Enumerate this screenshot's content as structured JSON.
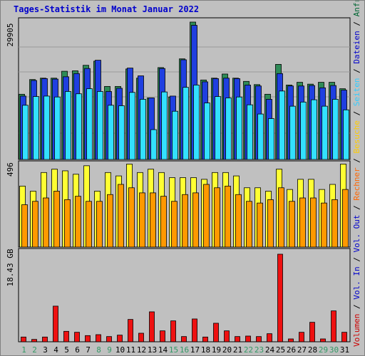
{
  "title": "Tages-Statistik im Monat Januar 2022",
  "legend": [
    {
      "key": "volumen",
      "label": "Volumen",
      "color": "#CC0000"
    },
    {
      "key": "vol_in",
      "label": "Vol. In",
      "color": "#0000CC"
    },
    {
      "key": "vol_out",
      "label": "Vol. Out",
      "color": "#0000CC"
    },
    {
      "key": "rechner",
      "label": "Rechner",
      "color": "#FF6600"
    },
    {
      "key": "besuche",
      "label": "Besuche",
      "color": "#FFCC00"
    },
    {
      "key": "seiten",
      "label": "Seiten",
      "color": "#33CCFF"
    },
    {
      "key": "dateien",
      "label": "Dateien",
      "color": "#0000CC"
    },
    {
      "key": "anfragen",
      "label": "Anfragen",
      "color": "#006633"
    }
  ],
  "legend_separator": " / ",
  "colors": {
    "anfragen": "#2E8B57",
    "dateien": "#1F3FE0",
    "seiten": "#33E0FF",
    "besuche": "#FFFF33",
    "rechner": "#FF9900",
    "volumen": "#EE1111",
    "weekend_label": "#339966",
    "weekday_label": "#000000"
  },
  "chart_data": [
    {
      "type": "bar",
      "panel": "hits",
      "ymax_label": "29905",
      "ymax": 29905,
      "categories": [
        "1",
        "2",
        "3",
        "4",
        "5",
        "6",
        "7",
        "8",
        "9",
        "10",
        "11",
        "12",
        "13",
        "14",
        "15",
        "16",
        "17",
        "18",
        "19",
        "20",
        "21",
        "22",
        "23",
        "24",
        "25",
        "26",
        "27",
        "28",
        "29",
        "30",
        "31"
      ],
      "weekend": [
        1,
        2,
        8,
        9,
        15,
        16,
        22,
        23,
        29,
        30
      ],
      "series": [
        {
          "name": "Anfragen",
          "values": [
            14200,
            17400,
            17700,
            17700,
            19200,
            19300,
            20500,
            21400,
            15900,
            15900,
            19700,
            17700,
            13400,
            20000,
            13600,
            21900,
            29905,
            17300,
            17700,
            18600,
            17700,
            17000,
            16300,
            14200,
            20700,
            16200,
            16800,
            16400,
            16800,
            16800,
            15400
          ]
        },
        {
          "name": "Dateien",
          "values": [
            13800,
            17200,
            17600,
            17500,
            18000,
            18700,
            19800,
            21600,
            14800,
            15500,
            19900,
            18200,
            13400,
            19800,
            13800,
            21700,
            29200,
            16900,
            17600,
            17700,
            17600,
            16200,
            16000,
            13100,
            18700,
            16000,
            16000,
            16100,
            15600,
            16100,
            15100
          ]
        },
        {
          "name": "Seiten",
          "values": [
            11800,
            13700,
            13800,
            13600,
            14800,
            14300,
            15400,
            14800,
            11800,
            11700,
            14600,
            13100,
            6500,
            14700,
            10500,
            15700,
            16200,
            12300,
            13700,
            13400,
            13600,
            11900,
            9900,
            8900,
            14900,
            11600,
            12500,
            13000,
            11600,
            13100,
            10800
          ]
        }
      ]
    },
    {
      "type": "bar",
      "panel": "visits",
      "ymax_label": "496",
      "ymax": 496,
      "categories": [
        "1",
        "2",
        "3",
        "4",
        "5",
        "6",
        "7",
        "8",
        "9",
        "10",
        "11",
        "12",
        "13",
        "14",
        "15",
        "16",
        "17",
        "18",
        "19",
        "20",
        "21",
        "22",
        "23",
        "24",
        "25",
        "26",
        "27",
        "28",
        "29",
        "30",
        "31"
      ],
      "series": [
        {
          "name": "Besuche",
          "values": [
            360,
            330,
            440,
            460,
            450,
            430,
            480,
            330,
            440,
            420,
            490,
            440,
            460,
            440,
            410,
            410,
            410,
            400,
            440,
            440,
            420,
            350,
            350,
            330,
            460,
            340,
            400,
            400,
            340,
            370,
            490
          ]
        },
        {
          "name": "Rechner",
          "values": [
            250,
            270,
            290,
            330,
            280,
            300,
            270,
            270,
            310,
            370,
            350,
            320,
            320,
            300,
            270,
            310,
            320,
            370,
            350,
            360,
            310,
            270,
            260,
            280,
            350,
            270,
            290,
            290,
            260,
            280,
            340
          ]
        }
      ]
    },
    {
      "type": "bar",
      "panel": "volume",
      "ymax_label": "18.43 GB",
      "ymax": 18.43,
      "unit": "GB",
      "categories": [
        "1",
        "2",
        "3",
        "4",
        "5",
        "6",
        "7",
        "8",
        "9",
        "10",
        "11",
        "12",
        "13",
        "14",
        "15",
        "16",
        "17",
        "18",
        "19",
        "20",
        "21",
        "22",
        "23",
        "24",
        "25",
        "26",
        "27",
        "28",
        "29",
        "30",
        "31"
      ],
      "series": [
        {
          "name": "Volumen",
          "values": [
            1.0,
            0.5,
            1.0,
            7.5,
            2.2,
            2.0,
            1.3,
            1.5,
            1.1,
            1.4,
            4.7,
            1.8,
            6.3,
            2.3,
            4.4,
            1.1,
            4.8,
            1.0,
            3.9,
            2.3,
            1.1,
            1.2,
            1.1,
            1.7,
            18.43,
            0.6,
            2.0,
            4.1,
            0.6,
            6.5,
            2.0
          ]
        }
      ]
    }
  ]
}
